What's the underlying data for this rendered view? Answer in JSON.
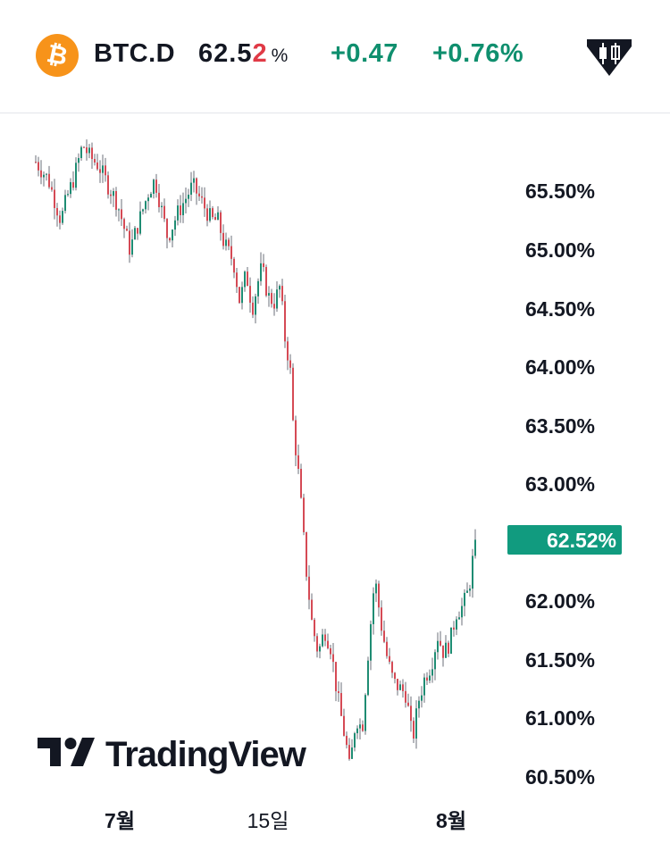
{
  "header": {
    "symbol": "BTC.D",
    "price_main": "62.5",
    "price_last_digit": "2",
    "price_unit": "%",
    "change_abs": "+0.47",
    "change_pct": "+0.76%",
    "icons": [
      "bitcoin-icon",
      "candlestick-tool-icon"
    ]
  },
  "colors": {
    "up": "#0f8f6e",
    "down": "#e03a46",
    "bitcoin": "#f7931a",
    "price_tag": "#119b7f"
  },
  "brand": {
    "name": "TradingView"
  },
  "chart_data": {
    "type": "candlestick",
    "y_unit": "%",
    "ylim": [
      60.35,
      66.05
    ],
    "y_ticks": [
      65.5,
      65.0,
      64.5,
      64.0,
      63.5,
      63.0,
      62.52,
      62.0,
      61.5,
      61.0,
      60.5
    ],
    "y_tick_labels": [
      "65.50%",
      "65.00%",
      "64.50%",
      "64.00%",
      "63.50%",
      "63.00%",
      "62.00%",
      "61.50%",
      "61.00%",
      "60.50%"
    ],
    "last_price_label": "62.52%",
    "x_tick_labels": [
      {
        "label": "7월",
        "bold": true
      },
      {
        "label": "15일",
        "bold": false
      },
      {
        "label": "8월",
        "bold": true
      }
    ],
    "grid": false,
    "path": [
      [
        0,
        65.75
      ],
      [
        4,
        65.6
      ],
      [
        8,
        65.25
      ],
      [
        10,
        65.45
      ],
      [
        12,
        65.6
      ],
      [
        15,
        65.9
      ],
      [
        17,
        65.8
      ],
      [
        20,
        65.72
      ],
      [
        23,
        65.55
      ],
      [
        26,
        65.4
      ],
      [
        28,
        65.2
      ],
      [
        30,
        65.0
      ],
      [
        33,
        65.25
      ],
      [
        36,
        65.5
      ],
      [
        38,
        65.6
      ],
      [
        40,
        65.35
      ],
      [
        42,
        65.1
      ],
      [
        45,
        65.3
      ],
      [
        48,
        65.45
      ],
      [
        50,
        65.55
      ],
      [
        53,
        65.4
      ],
      [
        56,
        65.25
      ],
      [
        58,
        65.25
      ],
      [
        60,
        65.05
      ],
      [
        63,
        64.9
      ],
      [
        65,
        64.55
      ],
      [
        67,
        64.8
      ],
      [
        69,
        64.5
      ],
      [
        71,
        64.75
      ],
      [
        72,
        64.85
      ],
      [
        74,
        64.6
      ],
      [
        76,
        64.55
      ],
      [
        78,
        64.7
      ],
      [
        79,
        64.3
      ],
      [
        81,
        64.0
      ],
      [
        82,
        63.5
      ],
      [
        84,
        63.0
      ],
      [
        86,
        62.3
      ],
      [
        88,
        61.8
      ],
      [
        90,
        61.55
      ],
      [
        92,
        61.75
      ],
      [
        94,
        61.6
      ],
      [
        96,
        61.2
      ],
      [
        98,
        60.9
      ],
      [
        99,
        60.75
      ],
      [
        100,
        60.55
      ],
      [
        102,
        61.0
      ],
      [
        104,
        60.9
      ],
      [
        106,
        61.6
      ],
      [
        108,
        62.2
      ],
      [
        110,
        61.8
      ],
      [
        112,
        61.5
      ],
      [
        114,
        61.3
      ],
      [
        116,
        61.25
      ],
      [
        118,
        61.2
      ],
      [
        120,
        60.8
      ],
      [
        122,
        61.15
      ],
      [
        124,
        61.35
      ],
      [
        126,
        61.45
      ],
      [
        128,
        61.7
      ],
      [
        130,
        61.55
      ],
      [
        132,
        61.65
      ],
      [
        134,
        61.9
      ],
      [
        136,
        61.95
      ],
      [
        138,
        62.1
      ],
      [
        140,
        62.52
      ]
    ]
  }
}
